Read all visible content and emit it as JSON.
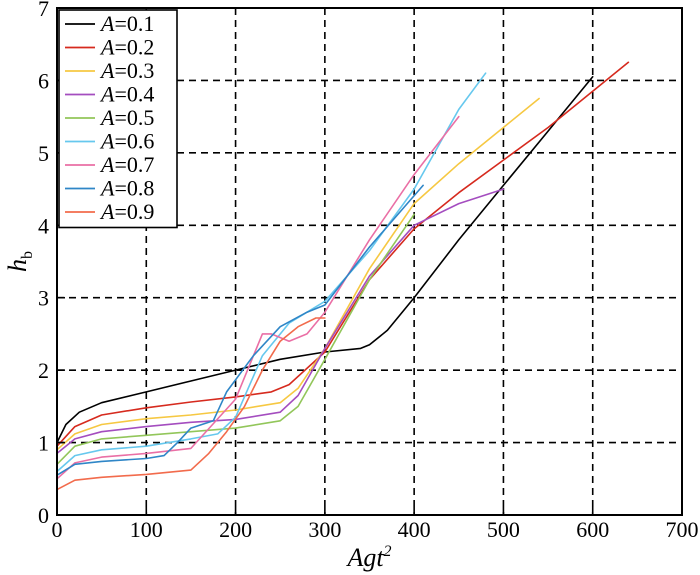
{
  "chart_data": {
    "type": "line",
    "xlabel": "Agt",
    "xlabel_superscript": "2",
    "ylabel": "h",
    "ylabel_subscript": "b",
    "xlim": [
      0,
      700
    ],
    "ylim": [
      0,
      7
    ],
    "xticks": [
      0,
      100,
      200,
      300,
      400,
      500,
      600,
      700
    ],
    "yticks": [
      0,
      1,
      2,
      3,
      4,
      5,
      6,
      7
    ],
    "grid": "dashed",
    "legend_position": "top-left",
    "legend_variable": "A",
    "series": [
      {
        "name": "=0.1",
        "color": "#000000",
        "points": [
          [
            0,
            1.0
          ],
          [
            10,
            1.25
          ],
          [
            25,
            1.42
          ],
          [
            50,
            1.55
          ],
          [
            100,
            1.7
          ],
          [
            150,
            1.85
          ],
          [
            200,
            2.0
          ],
          [
            250,
            2.15
          ],
          [
            300,
            2.25
          ],
          [
            340,
            2.3
          ],
          [
            350,
            2.35
          ],
          [
            370,
            2.55
          ],
          [
            390,
            2.85
          ],
          [
            400,
            3.0
          ],
          [
            450,
            3.8
          ],
          [
            500,
            4.55
          ],
          [
            550,
            5.3
          ],
          [
            600,
            6.05
          ]
        ]
      },
      {
        "name": "=0.2",
        "color": "#d62a1e",
        "points": [
          [
            0,
            0.95
          ],
          [
            20,
            1.22
          ],
          [
            50,
            1.38
          ],
          [
            100,
            1.48
          ],
          [
            150,
            1.56
          ],
          [
            200,
            1.63
          ],
          [
            240,
            1.7
          ],
          [
            260,
            1.8
          ],
          [
            300,
            2.25
          ],
          [
            350,
            3.25
          ],
          [
            400,
            3.95
          ],
          [
            450,
            4.45
          ],
          [
            500,
            4.9
          ],
          [
            550,
            5.35
          ],
          [
            600,
            5.85
          ],
          [
            640,
            6.25
          ]
        ]
      },
      {
        "name": "=0.3",
        "color": "#f6c842",
        "points": [
          [
            0,
            0.9
          ],
          [
            20,
            1.12
          ],
          [
            50,
            1.25
          ],
          [
            100,
            1.33
          ],
          [
            150,
            1.38
          ],
          [
            200,
            1.45
          ],
          [
            250,
            1.55
          ],
          [
            270,
            1.75
          ],
          [
            300,
            2.3
          ],
          [
            350,
            3.4
          ],
          [
            400,
            4.3
          ],
          [
            450,
            4.85
          ],
          [
            500,
            5.35
          ],
          [
            540,
            5.75
          ]
        ]
      },
      {
        "name": "=0.4",
        "color": "#a44dbf",
        "points": [
          [
            0,
            0.85
          ],
          [
            20,
            1.05
          ],
          [
            50,
            1.15
          ],
          [
            100,
            1.22
          ],
          [
            150,
            1.28
          ],
          [
            200,
            1.32
          ],
          [
            250,
            1.42
          ],
          [
            270,
            1.65
          ],
          [
            300,
            2.3
          ],
          [
            350,
            3.3
          ],
          [
            400,
            4.0
          ],
          [
            450,
            4.3
          ],
          [
            500,
            4.5
          ]
        ]
      },
      {
        "name": "=0.5",
        "color": "#92c65a",
        "points": [
          [
            0,
            0.7
          ],
          [
            20,
            0.95
          ],
          [
            50,
            1.05
          ],
          [
            100,
            1.1
          ],
          [
            150,
            1.15
          ],
          [
            200,
            1.2
          ],
          [
            250,
            1.3
          ],
          [
            270,
            1.5
          ],
          [
            300,
            2.15
          ],
          [
            350,
            3.25
          ],
          [
            400,
            4.15
          ]
        ]
      },
      {
        "name": "=0.6",
        "color": "#66c8ee",
        "points": [
          [
            0,
            0.6
          ],
          [
            20,
            0.82
          ],
          [
            50,
            0.9
          ],
          [
            100,
            0.95
          ],
          [
            150,
            1.05
          ],
          [
            180,
            1.12
          ],
          [
            200,
            1.35
          ],
          [
            230,
            2.2
          ],
          [
            260,
            2.65
          ],
          [
            300,
            2.95
          ],
          [
            350,
            3.65
          ],
          [
            400,
            4.5
          ],
          [
            450,
            5.6
          ],
          [
            480,
            6.1
          ]
        ]
      },
      {
        "name": "=0.7",
        "color": "#ea6fa5",
        "points": [
          [
            0,
            0.5
          ],
          [
            20,
            0.72
          ],
          [
            50,
            0.8
          ],
          [
            100,
            0.85
          ],
          [
            150,
            0.92
          ],
          [
            200,
            1.6
          ],
          [
            230,
            2.5
          ],
          [
            240,
            2.5
          ],
          [
            260,
            2.4
          ],
          [
            280,
            2.5
          ],
          [
            300,
            2.8
          ],
          [
            350,
            3.8
          ],
          [
            400,
            4.7
          ],
          [
            450,
            5.5
          ]
        ]
      },
      {
        "name": "=0.8",
        "color": "#2f86c7",
        "points": [
          [
            0,
            0.55
          ],
          [
            20,
            0.7
          ],
          [
            50,
            0.74
          ],
          [
            100,
            0.78
          ],
          [
            120,
            0.82
          ],
          [
            135,
            1.0
          ],
          [
            150,
            1.2
          ],
          [
            175,
            1.3
          ],
          [
            190,
            1.7
          ],
          [
            220,
            2.2
          ],
          [
            250,
            2.6
          ],
          [
            280,
            2.8
          ],
          [
            300,
            2.9
          ],
          [
            350,
            3.7
          ],
          [
            410,
            4.55
          ]
        ]
      },
      {
        "name": "=0.9",
        "color": "#f26b4c",
        "points": [
          [
            0,
            0.35
          ],
          [
            20,
            0.48
          ],
          [
            50,
            0.52
          ],
          [
            100,
            0.56
          ],
          [
            150,
            0.62
          ],
          [
            170,
            0.85
          ],
          [
            190,
            1.15
          ],
          [
            210,
            1.5
          ],
          [
            230,
            2.0
          ],
          [
            250,
            2.4
          ],
          [
            270,
            2.6
          ],
          [
            290,
            2.72
          ],
          [
            300,
            2.72
          ]
        ]
      }
    ]
  }
}
